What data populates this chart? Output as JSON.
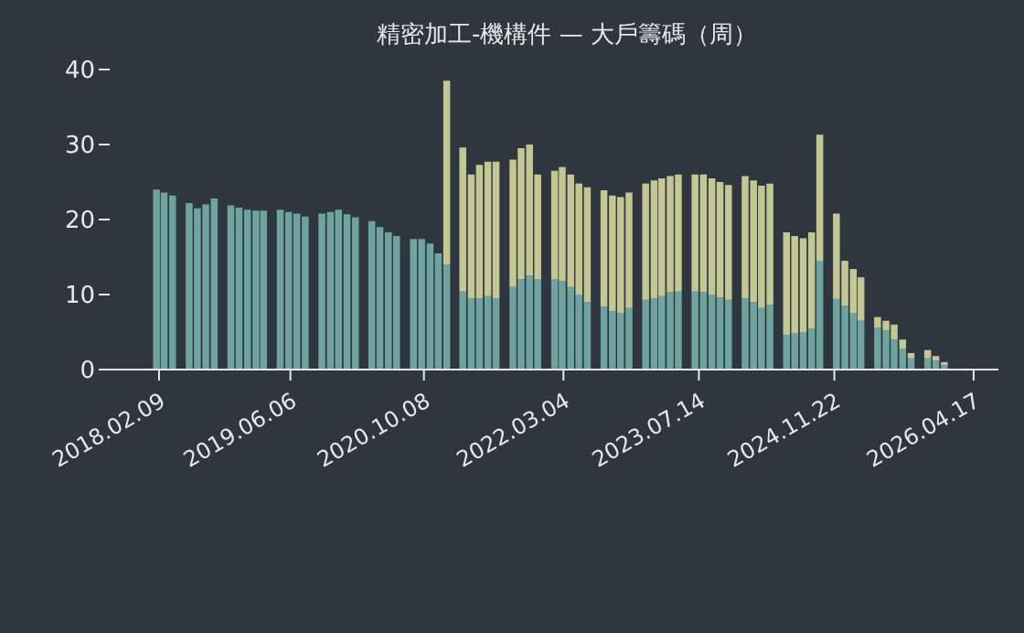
{
  "chart_data": {
    "type": "bar",
    "stacked": true,
    "title": "精密加工-機構件 — 大戶籌碼（周）",
    "x": [
      "2018-02",
      "2018-03",
      "2018-04",
      "2018-05",
      "2018-06",
      "2018-07",
      "2018-08",
      "2018-09",
      "2018-10",
      "2018-11",
      "2018-12",
      "2019-01",
      "2019-02",
      "2019-03",
      "2019-04",
      "2019-05",
      "2019-06",
      "2019-07",
      "2019-08",
      "2019-09",
      "2019-10",
      "2019-11",
      "2019-12",
      "2020-01",
      "2020-02",
      "2020-03",
      "2020-04",
      "2020-05",
      "2020-06",
      "2020-07",
      "2020-08",
      "2020-09",
      "2020-10",
      "2020-11",
      "2020-12",
      "2021-01",
      "2021-02",
      "2021-03",
      "2021-04",
      "2021-05",
      "2021-06",
      "2021-07",
      "2021-08",
      "2021-09",
      "2021-10",
      "2021-11",
      "2021-12",
      "2022-01",
      "2022-02",
      "2022-03",
      "2022-04",
      "2022-05",
      "2022-06",
      "2022-07",
      "2022-08",
      "2022-09",
      "2022-10",
      "2022-11",
      "2022-12",
      "2023-01",
      "2023-02",
      "2023-03",
      "2023-04",
      "2023-05",
      "2023-06",
      "2023-07",
      "2023-08",
      "2023-09",
      "2023-10",
      "2023-11",
      "2023-12",
      "2024-01",
      "2024-02",
      "2024-03",
      "2024-04",
      "2024-05",
      "2024-06",
      "2024-07",
      "2024-08",
      "2024-09",
      "2024-10",
      "2024-11",
      "2024-12",
      "2025-01",
      "2025-02",
      "2025-03",
      "2025-04",
      "2025-05",
      "2025-06",
      "2025-07",
      "2025-08",
      "2025-09",
      "2025-10",
      "2025-11",
      "2025-12",
      "2026-01"
    ],
    "series": [
      {
        "color": "#6fa39f",
        "values": [
          24,
          23.6,
          23.2,
          null,
          22.2,
          21.5,
          22.0,
          22.8,
          null,
          21.9,
          21.6,
          21.3,
          21.2,
          21.2,
          null,
          21.3,
          21.0,
          20.8,
          20.4,
          null,
          20.8,
          21.0,
          21.3,
          20.7,
          20.3,
          null,
          19.8,
          19.0,
          18.3,
          17.8,
          null,
          17.4,
          17.4,
          16.8,
          15.5,
          14,
          null,
          10.4,
          9.5,
          9.5,
          9.8,
          9.5,
          null,
          11.0,
          12.0,
          12.5,
          12.0,
          null,
          12.0,
          11.8,
          11.0,
          10.0,
          9.0,
          null,
          8.4,
          7.8,
          7.5,
          8.2,
          null,
          9.3,
          9.5,
          9.8,
          10.3,
          10.4,
          null,
          10.4,
          10.3,
          10.0,
          9.6,
          9.3,
          null,
          9.5,
          9.0,
          8.2,
          8.6,
          null,
          4.6,
          4.8,
          5.0,
          5.5,
          14.5,
          null,
          9.4,
          8.5,
          7.5,
          6.5,
          null,
          5.6,
          5.2,
          4.0,
          2.8,
          1.5,
          null,
          1.5,
          1.2,
          0.6
        ]
      },
      {
        "color": "#c3c793",
        "values": [
          0,
          0,
          0,
          null,
          0,
          0,
          0,
          0,
          null,
          0,
          0,
          0,
          0,
          0,
          null,
          0,
          0,
          0,
          0,
          null,
          0,
          0,
          0,
          0,
          0,
          null,
          0,
          0,
          0,
          0,
          null,
          0,
          0,
          0,
          0,
          24.5,
          null,
          19.2,
          16.5,
          17.8,
          17.9,
          18.2,
          null,
          17.0,
          17.5,
          17.5,
          14.0,
          null,
          14.5,
          15.2,
          15.0,
          14.8,
          15.3,
          null,
          15.5,
          15.4,
          15.5,
          15.4,
          null,
          15.5,
          15.7,
          15.7,
          15.5,
          15.6,
          null,
          15.6,
          15.7,
          15.5,
          15.4,
          15.3,
          null,
          16.3,
          16.2,
          16.3,
          16.2,
          null,
          13.7,
          13.0,
          12.5,
          12.8,
          16.8,
          null,
          11.4,
          6.0,
          5.9,
          5.8,
          null,
          1.4,
          1.3,
          2.0,
          1.2,
          0.7,
          null,
          1.1,
          0.6,
          0.4
        ]
      }
    ],
    "xlim": [
      "2017-08-12",
      "2026-07-17"
    ],
    "xticks": [
      {
        "value": "2018-02-09",
        "label": "2018.02.09"
      },
      {
        "value": "2019-06-06",
        "label": "2019.06.06"
      },
      {
        "value": "2020-10-08",
        "label": "2020.10.08"
      },
      {
        "value": "2022-03-04",
        "label": "2022.03.04"
      },
      {
        "value": "2023-07-14",
        "label": "2023.07.14"
      },
      {
        "value": "2024-11-22",
        "label": "2024.11.22"
      },
      {
        "value": "2026-04-17",
        "label": "2026.04.17"
      }
    ],
    "ylim": [
      0,
      40
    ],
    "yticks": [
      0,
      10,
      20,
      30,
      40
    ],
    "grid": false,
    "legend": false
  }
}
